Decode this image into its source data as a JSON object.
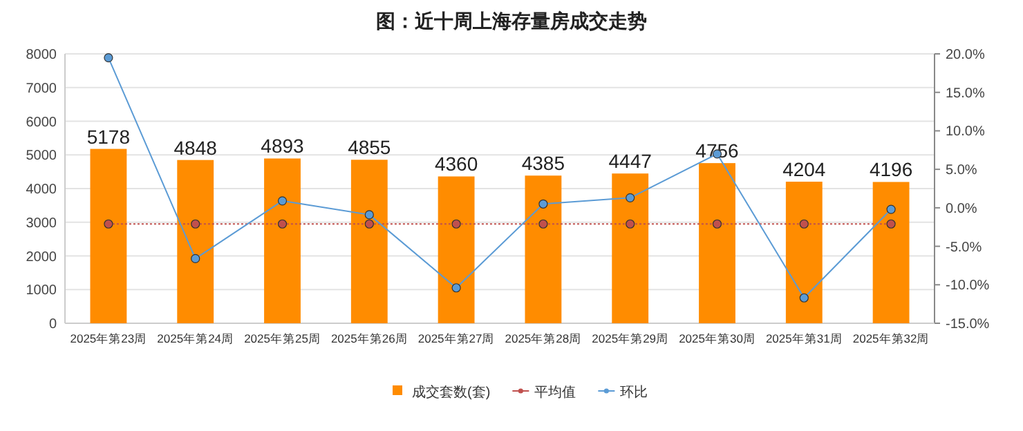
{
  "chart_data": {
    "type": "bar",
    "title": "图：近十周上海存量房成交走势",
    "categories": [
      "2025年第23周",
      "2025年第24周",
      "2025年第25周",
      "2025年第26周",
      "2025年第27周",
      "2025年第28周",
      "2025年第29周",
      "2025年第30周",
      "2025年第31周",
      "2025年第32周"
    ],
    "series": [
      {
        "name": "成交套数(套)",
        "color": "#ff8c00",
        "values": [
          5178,
          4848,
          4893,
          4855,
          4360,
          4385,
          4447,
          4756,
          4204,
          4196
        ],
        "value_labels": [
          "5178",
          "4848",
          "4893",
          "4855",
          "4360",
          "4385",
          "4447",
          "4756",
          "4204",
          "4196"
        ]
      },
      {
        "name": "平均值",
        "type": "line",
        "axis": "y2",
        "color": "#c0504d",
        "line_style": "dotted",
        "marker": "circle",
        "values": [
          -2.1,
          -2.1,
          -2.1,
          -2.1,
          -2.1,
          -2.1,
          -2.1,
          -2.1,
          -2.1,
          -2.1
        ]
      },
      {
        "name": "环比",
        "type": "line",
        "axis": "y2",
        "color": "#5b9bd5",
        "line_style": "solid",
        "marker": "circle",
        "values": [
          19.5,
          -6.6,
          0.9,
          -0.9,
          -10.4,
          0.5,
          1.3,
          7.0,
          -11.7,
          -0.2
        ]
      }
    ],
    "ylim": [
      0,
      8000
    ],
    "yticks": [
      0,
      1000,
      2000,
      3000,
      4000,
      5000,
      6000,
      7000,
      8000
    ],
    "y2lim": [
      -15,
      20
    ],
    "y2ticks": [
      {
        "value": -15,
        "label": "-15.0%"
      },
      {
        "value": -10,
        "label": "-10.0%"
      },
      {
        "value": -5,
        "label": "-5.0%"
      },
      {
        "value": 0,
        "label": "0.0%"
      },
      {
        "value": 5,
        "label": "5.0%"
      },
      {
        "value": 10,
        "label": "10.0%"
      },
      {
        "value": 15,
        "label": "15.0%"
      },
      {
        "value": 20,
        "label": "20.0%"
      }
    ],
    "grid": "y",
    "legend": "bottom"
  }
}
